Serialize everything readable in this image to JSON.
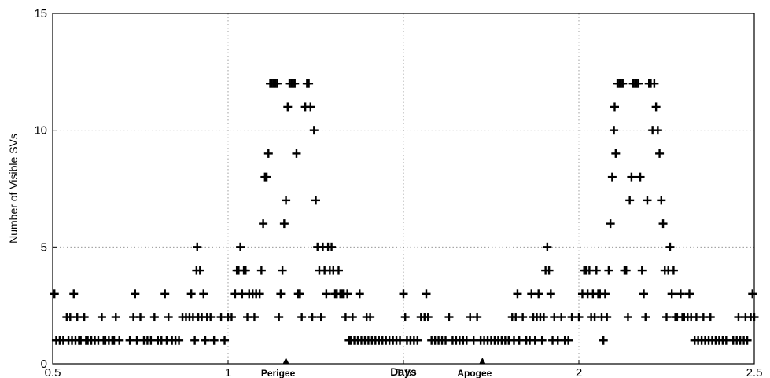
{
  "chart_data": {
    "type": "scatter",
    "xlabel": "Days",
    "ylabel": "Number of Visible SVs",
    "xlim": [
      0.5,
      2.5
    ],
    "ylim": [
      0,
      15
    ],
    "grid": true,
    "marker": "plus",
    "color": "#000000",
    "x_ticks": [
      {
        "value": 0.5,
        "label": "0.5"
      },
      {
        "value": 1,
        "label": "1"
      },
      {
        "value": 1.5,
        "label": "1.5"
      },
      {
        "value": 2,
        "label": "2"
      },
      {
        "value": 2.5,
        "label": "2.5"
      }
    ],
    "y_ticks": [
      {
        "value": 0,
        "label": "0"
      },
      {
        "value": 5,
        "label": "5"
      },
      {
        "value": 10,
        "label": "10"
      },
      {
        "value": 15,
        "label": "15"
      }
    ],
    "annotations": [
      {
        "text": "Perigee",
        "x": 1.165
      },
      {
        "text": "Apogee",
        "x": 1.725
      }
    ],
    "points": [
      [
        0.505,
        3
      ],
      [
        0.51,
        1
      ],
      [
        0.52,
        1
      ],
      [
        0.53,
        1
      ],
      [
        0.54,
        2
      ],
      [
        0.545,
        1
      ],
      [
        0.55,
        2
      ],
      [
        0.555,
        1
      ],
      [
        0.56,
        3
      ],
      [
        0.565,
        1
      ],
      [
        0.57,
        2
      ],
      [
        0.575,
        1
      ],
      [
        0.58,
        1
      ],
      [
        0.59,
        2
      ],
      [
        0.595,
        1
      ],
      [
        0.6,
        1
      ],
      [
        0.61,
        1
      ],
      [
        0.62,
        1
      ],
      [
        0.63,
        1
      ],
      [
        0.64,
        2
      ],
      [
        0.645,
        1
      ],
      [
        0.65,
        1
      ],
      [
        0.66,
        1
      ],
      [
        0.67,
        1
      ],
      [
        0.675,
        1
      ],
      [
        0.68,
        2
      ],
      [
        0.69,
        1
      ],
      [
        0.72,
        1
      ],
      [
        0.73,
        2
      ],
      [
        0.735,
        3
      ],
      [
        0.74,
        1
      ],
      [
        0.75,
        2
      ],
      [
        0.76,
        1
      ],
      [
        0.77,
        1
      ],
      [
        0.78,
        1
      ],
      [
        0.79,
        2
      ],
      [
        0.8,
        1
      ],
      [
        0.81,
        1
      ],
      [
        0.82,
        3
      ],
      [
        0.825,
        1
      ],
      [
        0.83,
        2
      ],
      [
        0.84,
        1
      ],
      [
        0.85,
        1
      ],
      [
        0.86,
        1
      ],
      [
        0.87,
        2
      ],
      [
        0.88,
        2
      ],
      [
        0.89,
        2
      ],
      [
        0.895,
        3
      ],
      [
        0.9,
        2
      ],
      [
        0.905,
        1
      ],
      [
        0.91,
        4
      ],
      [
        0.912,
        5
      ],
      [
        0.915,
        2
      ],
      [
        0.92,
        4
      ],
      [
        0.925,
        2
      ],
      [
        0.93,
        3
      ],
      [
        0.935,
        1
      ],
      [
        0.94,
        2
      ],
      [
        0.95,
        2
      ],
      [
        0.96,
        1
      ],
      [
        0.98,
        2
      ],
      [
        0.99,
        1
      ],
      [
        1.0,
        2
      ],
      [
        1.01,
        2
      ],
      [
        1.02,
        3
      ],
      [
        1.025,
        4
      ],
      [
        1.03,
        4
      ],
      [
        1.035,
        5
      ],
      [
        1.04,
        3
      ],
      [
        1.045,
        4
      ],
      [
        1.05,
        4
      ],
      [
        1.055,
        2
      ],
      [
        1.06,
        3
      ],
      [
        1.07,
        3
      ],
      [
        1.075,
        2
      ],
      [
        1.08,
        3
      ],
      [
        1.09,
        3
      ],
      [
        1.095,
        4
      ],
      [
        1.1,
        6
      ],
      [
        1.105,
        8
      ],
      [
        1.11,
        8
      ],
      [
        1.115,
        9
      ],
      [
        1.12,
        12
      ],
      [
        1.125,
        12
      ],
      [
        1.13,
        12
      ],
      [
        1.135,
        12
      ],
      [
        1.14,
        12
      ],
      [
        1.145,
        2
      ],
      [
        1.15,
        3
      ],
      [
        1.155,
        4
      ],
      [
        1.16,
        6
      ],
      [
        1.165,
        7
      ],
      [
        1.17,
        11
      ],
      [
        1.175,
        12
      ],
      [
        1.18,
        12
      ],
      [
        1.185,
        12
      ],
      [
        1.19,
        12
      ],
      [
        1.195,
        9
      ],
      [
        1.2,
        3
      ],
      [
        1.205,
        3
      ],
      [
        1.21,
        2
      ],
      [
        1.22,
        11
      ],
      [
        1.225,
        12
      ],
      [
        1.23,
        12
      ],
      [
        1.235,
        11
      ],
      [
        1.24,
        2
      ],
      [
        1.245,
        10
      ],
      [
        1.25,
        7
      ],
      [
        1.255,
        5
      ],
      [
        1.26,
        4
      ],
      [
        1.265,
        2
      ],
      [
        1.27,
        5
      ],
      [
        1.275,
        4
      ],
      [
        1.28,
        3
      ],
      [
        1.285,
        5
      ],
      [
        1.29,
        4
      ],
      [
        1.295,
        5
      ],
      [
        1.3,
        4
      ],
      [
        1.305,
        3
      ],
      [
        1.31,
        3
      ],
      [
        1.315,
        4
      ],
      [
        1.32,
        3
      ],
      [
        1.325,
        3
      ],
      [
        1.33,
        3
      ],
      [
        1.335,
        2
      ],
      [
        1.34,
        3
      ],
      [
        1.345,
        1
      ],
      [
        1.35,
        1
      ],
      [
        1.355,
        2
      ],
      [
        1.36,
        1
      ],
      [
        1.37,
        1
      ],
      [
        1.375,
        3
      ],
      [
        1.38,
        1
      ],
      [
        1.39,
        1
      ],
      [
        1.395,
        2
      ],
      [
        1.4,
        1
      ],
      [
        1.405,
        2
      ],
      [
        1.41,
        1
      ],
      [
        1.42,
        1
      ],
      [
        1.43,
        1
      ],
      [
        1.44,
        1
      ],
      [
        1.45,
        1
      ],
      [
        1.46,
        1
      ],
      [
        1.47,
        1
      ],
      [
        1.48,
        1
      ],
      [
        1.49,
        1
      ],
      [
        1.5,
        3
      ],
      [
        1.505,
        2
      ],
      [
        1.51,
        1
      ],
      [
        1.52,
        1
      ],
      [
        1.53,
        1
      ],
      [
        1.54,
        1
      ],
      [
        1.55,
        2
      ],
      [
        1.56,
        2
      ],
      [
        1.565,
        3
      ],
      [
        1.57,
        2
      ],
      [
        1.58,
        1
      ],
      [
        1.59,
        1
      ],
      [
        1.6,
        1
      ],
      [
        1.61,
        1
      ],
      [
        1.62,
        1
      ],
      [
        1.63,
        2
      ],
      [
        1.64,
        1
      ],
      [
        1.65,
        1
      ],
      [
        1.66,
        1
      ],
      [
        1.67,
        1
      ],
      [
        1.68,
        1
      ],
      [
        1.69,
        2
      ],
      [
        1.7,
        1
      ],
      [
        1.71,
        2
      ],
      [
        1.72,
        1
      ],
      [
        1.73,
        1
      ],
      [
        1.74,
        1
      ],
      [
        1.75,
        1
      ],
      [
        1.76,
        1
      ],
      [
        1.77,
        1
      ],
      [
        1.78,
        1
      ],
      [
        1.79,
        1
      ],
      [
        1.8,
        1
      ],
      [
        1.81,
        2
      ],
      [
        1.815,
        1
      ],
      [
        1.82,
        2
      ],
      [
        1.825,
        3
      ],
      [
        1.83,
        1
      ],
      [
        1.84,
        2
      ],
      [
        1.85,
        1
      ],
      [
        1.86,
        1
      ],
      [
        1.865,
        3
      ],
      [
        1.87,
        2
      ],
      [
        1.875,
        1
      ],
      [
        1.88,
        2
      ],
      [
        1.885,
        3
      ],
      [
        1.89,
        2
      ],
      [
        1.895,
        1
      ],
      [
        1.9,
        2
      ],
      [
        1.905,
        4
      ],
      [
        1.91,
        5
      ],
      [
        1.915,
        4
      ],
      [
        1.92,
        3
      ],
      [
        1.925,
        1
      ],
      [
        1.93,
        2
      ],
      [
        1.94,
        1
      ],
      [
        1.95,
        2
      ],
      [
        1.96,
        1
      ],
      [
        1.97,
        1
      ],
      [
        1.98,
        2
      ],
      [
        2.0,
        2
      ],
      [
        2.01,
        3
      ],
      [
        2.015,
        4
      ],
      [
        2.02,
        4
      ],
      [
        2.025,
        3
      ],
      [
        2.03,
        4
      ],
      [
        2.035,
        2
      ],
      [
        2.04,
        3
      ],
      [
        2.045,
        2
      ],
      [
        2.05,
        4
      ],
      [
        2.055,
        3
      ],
      [
        2.06,
        3
      ],
      [
        2.065,
        2
      ],
      [
        2.07,
        1
      ],
      [
        2.075,
        3
      ],
      [
        2.08,
        2
      ],
      [
        2.085,
        4
      ],
      [
        2.09,
        6
      ],
      [
        2.095,
        8
      ],
      [
        2.1,
        10
      ],
      [
        2.102,
        11
      ],
      [
        2.105,
        9
      ],
      [
        2.11,
        12
      ],
      [
        2.115,
        12
      ],
      [
        2.12,
        12
      ],
      [
        2.125,
        12
      ],
      [
        2.13,
        4
      ],
      [
        2.135,
        4
      ],
      [
        2.14,
        2
      ],
      [
        2.145,
        7
      ],
      [
        2.15,
        8
      ],
      [
        2.155,
        12
      ],
      [
        2.16,
        12
      ],
      [
        2.165,
        12
      ],
      [
        2.17,
        12
      ],
      [
        2.175,
        8
      ],
      [
        2.18,
        4
      ],
      [
        2.185,
        3
      ],
      [
        2.19,
        2
      ],
      [
        2.195,
        7
      ],
      [
        2.2,
        12
      ],
      [
        2.205,
        12
      ],
      [
        2.21,
        10
      ],
      [
        2.215,
        12
      ],
      [
        2.22,
        11
      ],
      [
        2.225,
        10
      ],
      [
        2.23,
        9
      ],
      [
        2.235,
        7
      ],
      [
        2.24,
        6
      ],
      [
        2.245,
        4
      ],
      [
        2.25,
        2
      ],
      [
        2.255,
        4
      ],
      [
        2.26,
        5
      ],
      [
        2.265,
        3
      ],
      [
        2.27,
        4
      ],
      [
        2.275,
        2
      ],
      [
        2.28,
        2
      ],
      [
        2.29,
        3
      ],
      [
        2.295,
        2
      ],
      [
        2.3,
        2
      ],
      [
        2.31,
        2
      ],
      [
        2.315,
        3
      ],
      [
        2.32,
        2
      ],
      [
        2.33,
        1
      ],
      [
        2.335,
        2
      ],
      [
        2.34,
        1
      ],
      [
        2.35,
        1
      ],
      [
        2.355,
        2
      ],
      [
        2.36,
        1
      ],
      [
        2.37,
        1
      ],
      [
        2.375,
        2
      ],
      [
        2.38,
        1
      ],
      [
        2.39,
        1
      ],
      [
        2.4,
        1
      ],
      [
        2.41,
        1
      ],
      [
        2.42,
        1
      ],
      [
        2.44,
        1
      ],
      [
        2.45,
        1
      ],
      [
        2.455,
        2
      ],
      [
        2.46,
        1
      ],
      [
        2.47,
        1
      ],
      [
        2.475,
        2
      ],
      [
        2.48,
        1
      ],
      [
        2.49,
        2
      ],
      [
        2.495,
        3
      ],
      [
        2.5,
        2
      ]
    ]
  }
}
